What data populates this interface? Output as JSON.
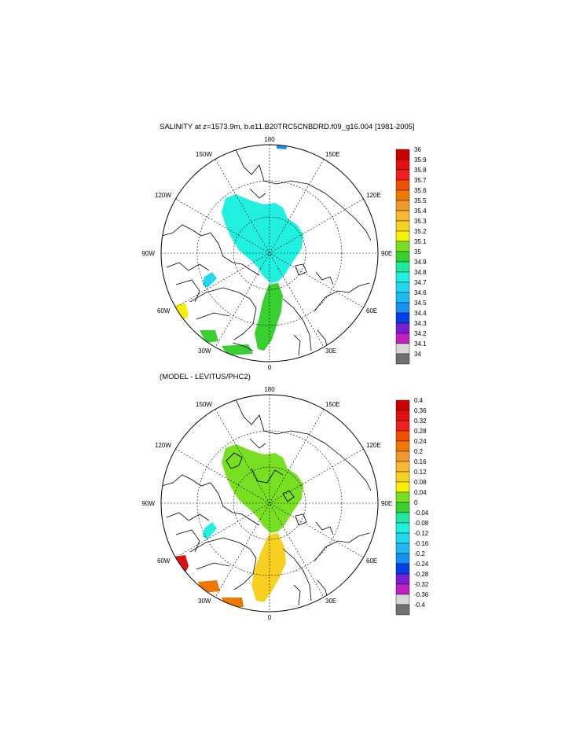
{
  "figure": {
    "top_title": "SALINITY at z=1573.9m, b.e11.B20TRC5CNBDRD.f09_g16.004 [1981-2005]",
    "bottom_title": "(MODEL - LEVITUS/PHC2)"
  },
  "map_labels": {
    "top": "180",
    "bottom": "0",
    "left": "90W",
    "right": "90E",
    "upper_left_1": "150W",
    "upper_left_2": "120W",
    "upper_right_1": "150E",
    "upper_right_2": "120E",
    "lower_left_1": "60W",
    "lower_left_2": "30W",
    "lower_right_1": "60E",
    "lower_right_2": "30E"
  },
  "colorbars": {
    "top": {
      "labels": [
        "36",
        "35.9",
        "35.8",
        "35.7",
        "35.6",
        "35.5",
        "35.4",
        "35.3",
        "35.2",
        "35.1",
        "35",
        "34.9",
        "34.8",
        "34.7",
        "34.6",
        "34.5",
        "34.4",
        "34.3",
        "34.2",
        "34.1",
        "34"
      ],
      "colors": [
        "#c80000",
        "#e01010",
        "#f02020",
        "#f05000",
        "#f07800",
        "#f09830",
        "#f8b830",
        "#f8d020",
        "#f8f000",
        "#78e020",
        "#38d030",
        "#20e8a0",
        "#20f0e0",
        "#20d8f0",
        "#20b8f0",
        "#1890f0",
        "#0040e8",
        "#7820d0",
        "#c020c0",
        "#d8d8d8",
        "#707070"
      ]
    },
    "bottom": {
      "labels": [
        "0.4",
        "0.36",
        "0.32",
        "0.28",
        "0.24",
        "0.2",
        "0.16",
        "0.12",
        "0.08",
        "0.04",
        "0",
        "-0.04",
        "-0.08",
        "-0.12",
        "-0.16",
        "-0.2",
        "-0.24",
        "-0.28",
        "-0.32",
        "-0.36",
        "-0.4"
      ],
      "colors": [
        "#c80000",
        "#e01010",
        "#f02020",
        "#f05000",
        "#f07800",
        "#f09830",
        "#f8b830",
        "#f8d020",
        "#f8f000",
        "#78e020",
        "#38d030",
        "#20e8a0",
        "#20f0e0",
        "#20d8f0",
        "#20b8f0",
        "#1890f0",
        "#0040e8",
        "#7820d0",
        "#c020c0",
        "#d8d8d8",
        "#707070"
      ]
    }
  },
  "fields": {
    "top_main": "#20f0e0",
    "top_atlantic": "#38d030",
    "top_yellow": "#f8f000",
    "top_small": "#20d8f0",
    "top_blue_spot": "#1890f0",
    "bottom_main": "#78e020",
    "bottom_atlantic": "#f8d020",
    "bottom_red": "#e01010",
    "bottom_orange": "#f07800",
    "bottom_small": "#20f0e0"
  }
}
